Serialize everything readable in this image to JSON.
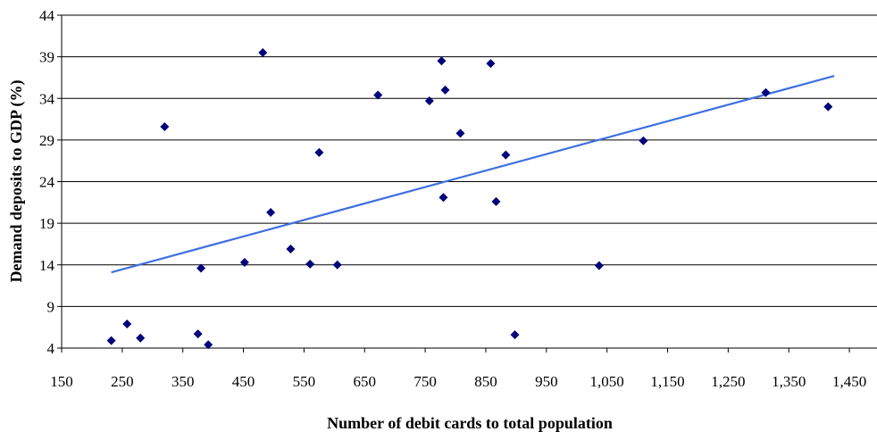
{
  "chart_data": {
    "type": "scatter",
    "title": "",
    "xlabel": "Number of debit cards to total population",
    "ylabel": "Demand deposits to GDP (%)",
    "xlim": [
      150,
      1500
    ],
    "ylim": [
      4,
      44
    ],
    "x_ticks": [
      150,
      250,
      350,
      450,
      550,
      650,
      750,
      850,
      950,
      1050,
      1150,
      1250,
      1350,
      1450
    ],
    "x_tick_labels": [
      "150",
      "250",
      "350",
      "450",
      "550",
      "650",
      "750",
      "850",
      "950",
      "1,050",
      "1,150",
      "1,250",
      "1,350",
      "1,450"
    ],
    "y_ticks": [
      4,
      9,
      14,
      19,
      24,
      29,
      34,
      39,
      44
    ],
    "y_tick_labels": [
      "4",
      "9",
      "14",
      "19",
      "24",
      "29",
      "34",
      "39",
      "44"
    ],
    "grid": "horizontal",
    "marker_color": "#00007a",
    "trend_color": "#3f6fe0",
    "series": [
      {
        "points": [
          [
            232,
            4.9
          ],
          [
            258,
            6.9
          ],
          [
            280,
            5.2
          ],
          [
            320,
            30.6
          ],
          [
            375,
            5.7
          ],
          [
            380,
            13.6
          ],
          [
            392,
            4.4
          ],
          [
            452,
            14.3
          ],
          [
            482,
            39.5
          ],
          [
            495,
            20.3
          ],
          [
            528,
            15.9
          ],
          [
            560,
            14.1
          ],
          [
            575,
            27.5
          ],
          [
            605,
            14.0
          ],
          [
            672,
            34.4
          ],
          [
            757,
            33.7
          ],
          [
            777,
            38.5
          ],
          [
            780,
            22.1
          ],
          [
            783,
            35.0
          ],
          [
            808,
            29.8
          ],
          [
            858,
            38.2
          ],
          [
            867,
            21.6
          ],
          [
            883,
            27.2
          ],
          [
            898,
            5.6
          ],
          [
            1037,
            13.9
          ],
          [
            1110,
            28.9
          ],
          [
            1312,
            34.7
          ],
          [
            1415,
            33.0
          ]
        ]
      }
    ],
    "trendline": {
      "x": [
        232,
        1425
      ],
      "y": [
        13.1,
        36.7
      ]
    }
  }
}
